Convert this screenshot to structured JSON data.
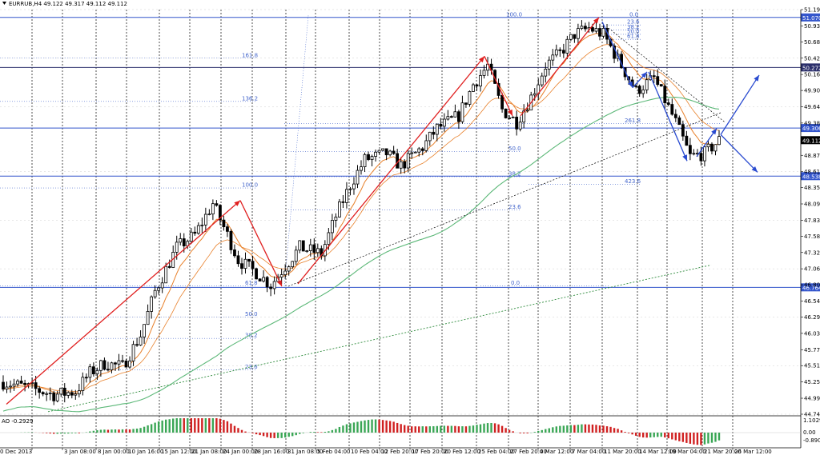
{
  "window": {
    "symbol_line": "EURRUB,H4  49.122 49.317 49.112 49.112"
  },
  "indicator": {
    "label": "AO -0.2929",
    "scale_labels": [
      "1.1029",
      "0.00",
      "-0.8901"
    ]
  },
  "chart_data": {
    "type": "candlestick",
    "symbol": "EURRUB",
    "timeframe": "H4",
    "ohlc_header": {
      "open": 49.122,
      "high": 49.317,
      "low": 49.112,
      "close": 49.112
    },
    "ylim": [
      44.74,
      51.195
    ],
    "y_ticks": [
      51.195,
      50.935,
      50.68,
      50.42,
      50.16,
      49.905,
      49.645,
      49.385,
      48.87,
      48.61,
      48.355,
      48.095,
      47.835,
      47.58,
      47.32,
      47.06,
      46.805,
      46.545,
      46.29,
      46.03,
      45.77,
      45.515,
      45.255,
      44.995,
      44.74
    ],
    "x_labels": [
      "0 Dec 2013",
      "3 Jan 08:00",
      "8 Jan 00:00",
      "10 Jan 16:00",
      "15 Jan 12:00",
      "21 Jan 08:00",
      "24 Jan 00:00",
      "28 Jan 16:00",
      "31 Jan 08:00",
      "5 Feb 04:00",
      "10 Feb 04:00",
      "12 Feb 20:00",
      "17 Feb 20:00",
      "20 Feb 12:00",
      "25 Feb 04:00",
      "27 Feb 20:00",
      "4 Mar 12:00",
      "7 Mar 04:00",
      "11 Mar 20:00",
      "14 Mar 12:00",
      "19 Mar 04:00",
      "21 Mar 20:00",
      "26 Mar 12:00"
    ],
    "price_path": [
      [
        0,
        45.25
      ],
      [
        8,
        45.15
      ],
      [
        14,
        45.05
      ],
      [
        20,
        45.1
      ],
      [
        24,
        45.4
      ],
      [
        28,
        45.55
      ],
      [
        33,
        45.5
      ],
      [
        38,
        46.0
      ],
      [
        42,
        46.7
      ],
      [
        48,
        47.4
      ],
      [
        53,
        47.6
      ],
      [
        58,
        48.1
      ],
      [
        62,
        47.6
      ],
      [
        65,
        47.2
      ],
      [
        70,
        47.0
      ],
      [
        74,
        46.8
      ],
      [
        78,
        47.1
      ],
      [
        82,
        47.4
      ],
      [
        88,
        47.3
      ],
      [
        92,
        47.9
      ],
      [
        96,
        48.4
      ],
      [
        100,
        48.8
      ],
      [
        106,
        48.9
      ],
      [
        110,
        48.7
      ],
      [
        116,
        49.0
      ],
      [
        120,
        49.3
      ],
      [
        126,
        49.5
      ],
      [
        130,
        50.0
      ],
      [
        134,
        50.3
      ],
      [
        138,
        49.6
      ],
      [
        142,
        49.4
      ],
      [
        146,
        49.8
      ],
      [
        150,
        50.3
      ],
      [
        154,
        50.5
      ],
      [
        158,
        50.8
      ],
      [
        162,
        50.9
      ],
      [
        166,
        50.8
      ],
      [
        170,
        50.4
      ],
      [
        175,
        49.9
      ],
      [
        180,
        50.1
      ],
      [
        186,
        49.4
      ],
      [
        190,
        48.85
      ],
      [
        194,
        48.9
      ],
      [
        198,
        49.11
      ]
    ],
    "horizontal_levels": [
      {
        "value": 51.07,
        "label": "51.070",
        "color": "#3355cc"
      },
      {
        "value": 50.272,
        "label": "50.272",
        "color": "#2b2f6b"
      },
      {
        "value": 49.306,
        "label": "49.306",
        "color": "#3355cc"
      },
      {
        "value": 48.538,
        "label": "48.538",
        "color": "#3355cc"
      },
      {
        "value": 46.764,
        "label": "46.764",
        "color": "#3355cc"
      }
    ],
    "current_price": {
      "value": 49.112,
      "label": "49.112"
    },
    "fibo_labels": [
      "100.0",
      "0.0",
      "161.8",
      "136.2",
      "261.8",
      "50.0",
      "38.2",
      "23.6",
      "423.6",
      "61.8",
      "0.0",
      "100.0",
      "50.0",
      "38.2",
      "23.6",
      "23.6",
      "38.2",
      "50.0",
      "61.8"
    ],
    "colors": {
      "candle": "#000000",
      "ema_fast": "#e8802a",
      "ema_slow": "#5cb878",
      "trend_dotted": "#2e8b3c",
      "arrow_up": "#e02020",
      "arrow_down": "#2a4bd0",
      "level": "#3355cc",
      "ao_up": "#3aa655",
      "ao_down": "#d02020"
    }
  }
}
